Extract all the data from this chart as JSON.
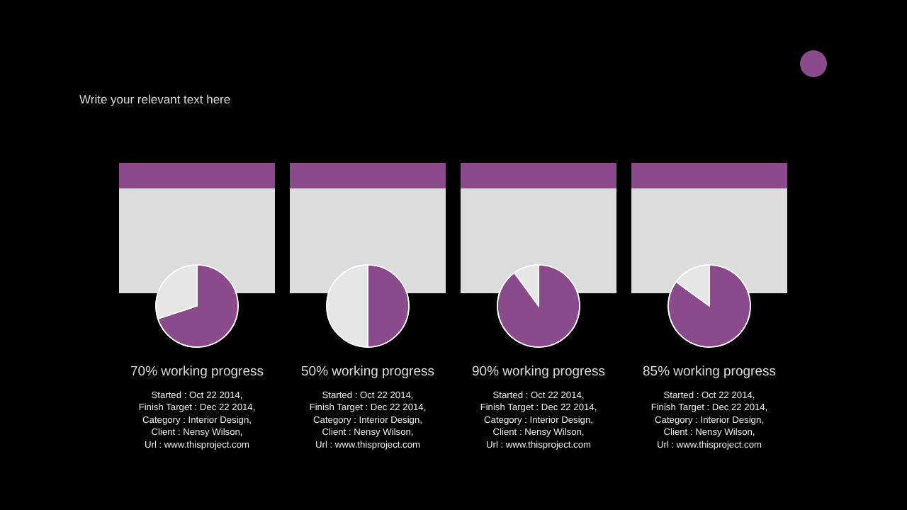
{
  "chart_data": [
    {
      "type": "other",
      "title": "Write your relevant text here"
    },
    {
      "type": "pie",
      "title": "70% working progress",
      "categories": [
        null,
        null
      ],
      "values": [
        70,
        30
      ],
      "colors": [
        "#8a4a8c",
        "#e6e6e6"
      ],
      "annotations": [
        "Started : Oct 22 2014,",
        "Finish Target : Dec 22 2014,",
        "Category : Interior Design,",
        "Client : Nensy Wilson,",
        "Url : www.thisproject.com"
      ]
    },
    {
      "type": "pie",
      "title": "50% working progress",
      "categories": [
        null,
        null
      ],
      "values": [
        50,
        50
      ],
      "colors": [
        "#8a4a8c",
        "#e6e6e6"
      ],
      "annotations": [
        "Started : Oct 22 2014,",
        "Finish Target : Dec 22 2014,",
        "Category : Interior Design,",
        "Client : Nensy Wilson,",
        "Url : www.thisproject.com"
      ]
    },
    {
      "type": "pie",
      "title": "90% working progress",
      "categories": [
        null,
        null
      ],
      "values": [
        90,
        10
      ],
      "colors": [
        "#8a4a8c",
        "#e6e6e6"
      ],
      "annotations": [
        "Started : Oct 22 2014,",
        "Finish Target : Dec 22 2014,",
        "Category : Interior Design,",
        "Client : Nensy Wilson,",
        "Url : www.thisproject.com"
      ]
    },
    {
      "type": "pie",
      "title": "85% working progress",
      "categories": [
        null,
        null
      ],
      "values": [
        85,
        15
      ],
      "colors": [
        "#8a4a8c",
        "#e6e6e6"
      ],
      "annotations": [
        "Started : Oct 22 2014,",
        "Finish Target : Dec 22 2014,",
        "Category : Interior Design,",
        "Client : Nensy Wilson,",
        "Url : www.thisproject.com"
      ]
    }
  ]
}
